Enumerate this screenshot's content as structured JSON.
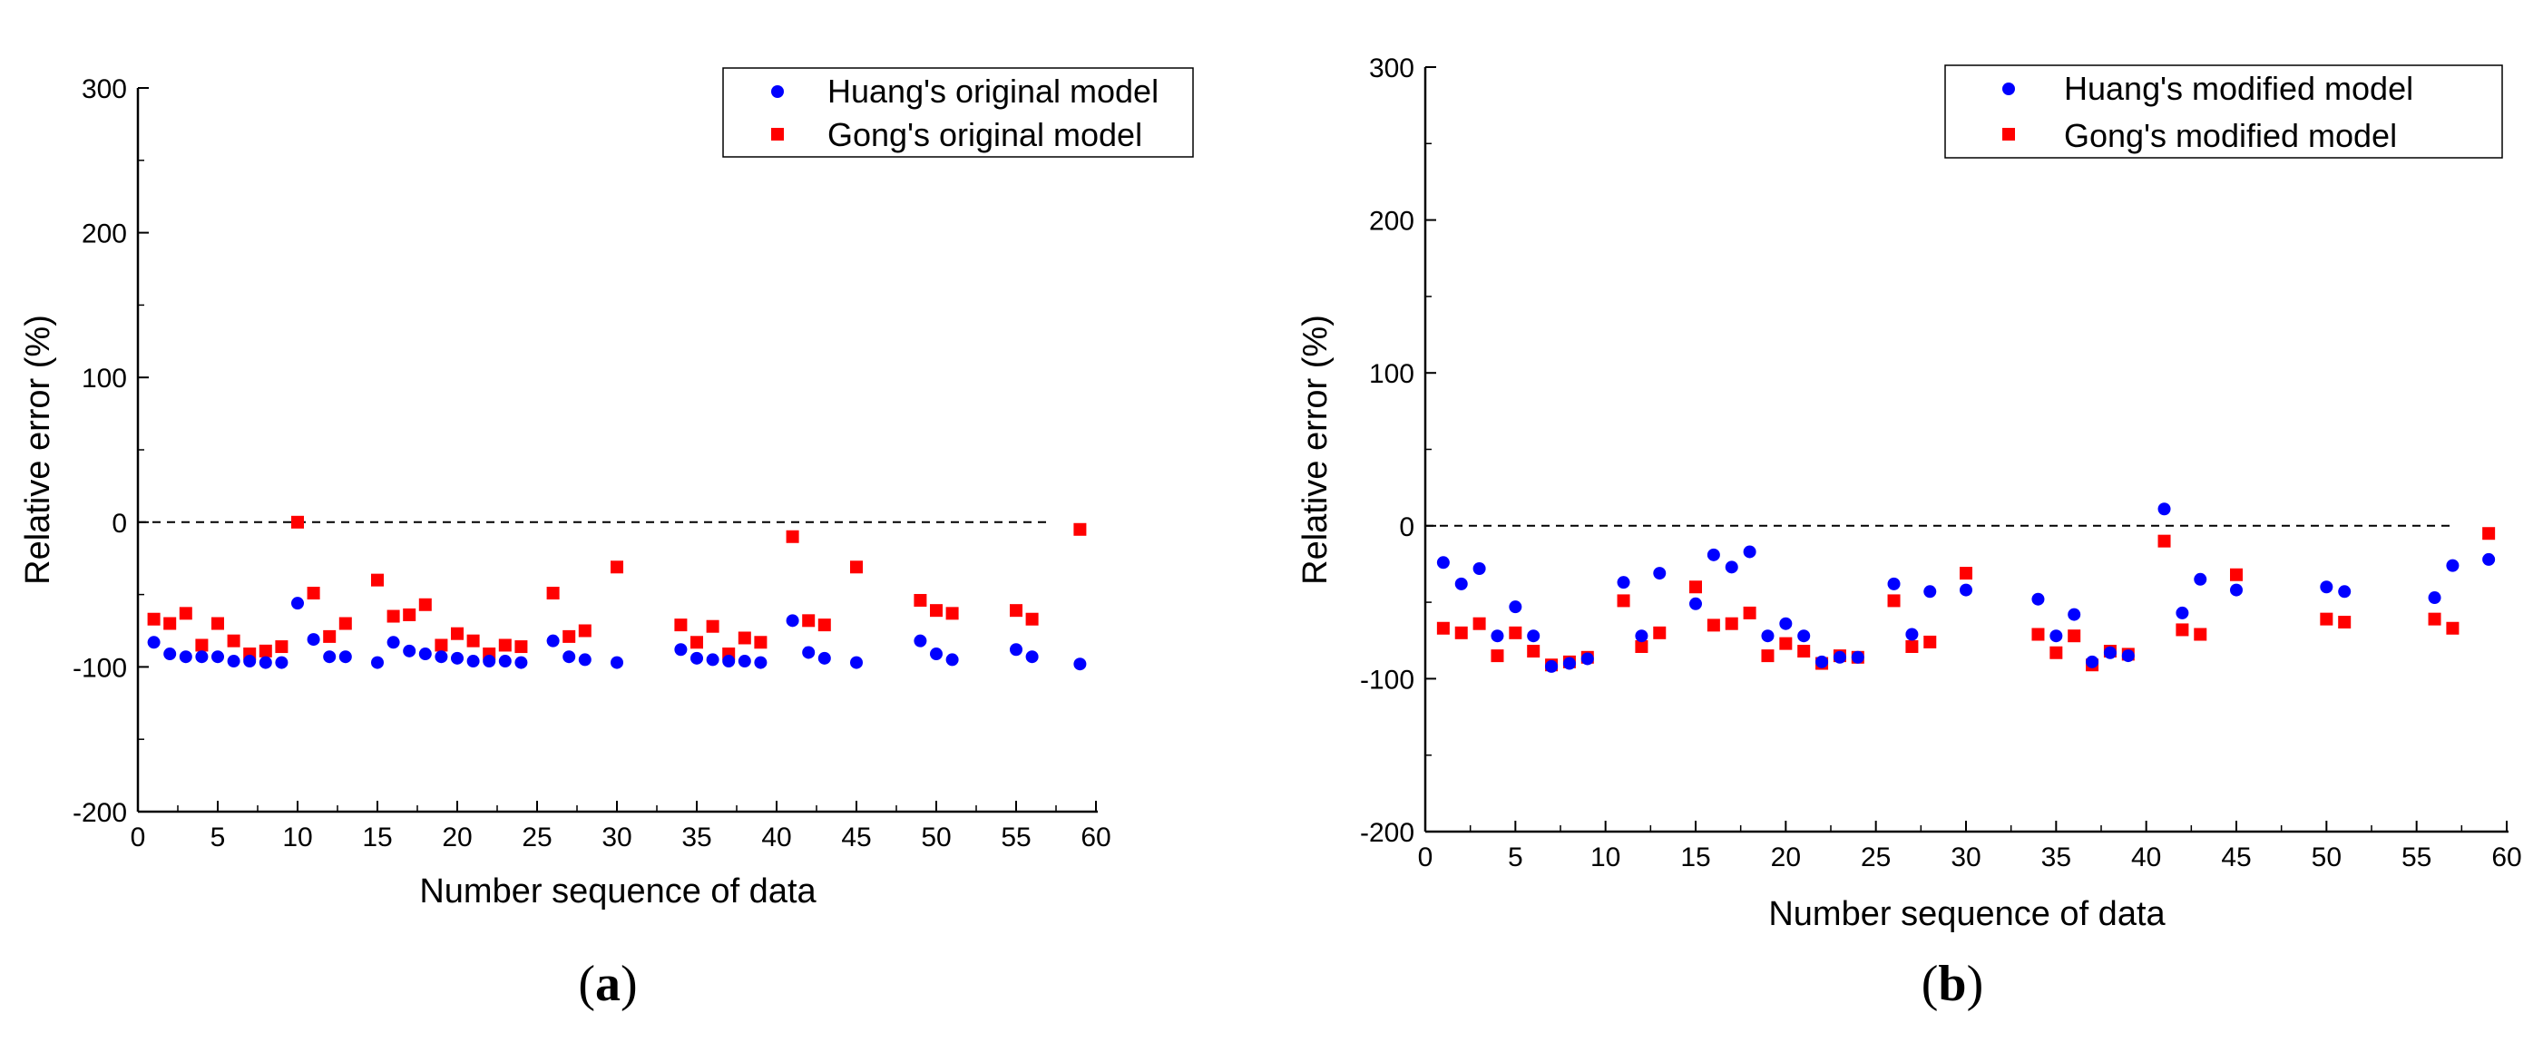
{
  "chart_data": [
    {
      "id": "a",
      "type": "scatter",
      "panel_label": "a",
      "xlabel": "Number sequence of data",
      "ylabel": "Relative error (%)",
      "xlim": [
        0,
        60
      ],
      "ylim": [
        -200,
        300
      ],
      "xticks": [
        0,
        5,
        10,
        15,
        20,
        25,
        30,
        35,
        40,
        45,
        50,
        55,
        60
      ],
      "yticks": [
        -200,
        -100,
        0,
        100,
        200,
        300
      ],
      "reference_line": {
        "y": 0,
        "style": "dashed",
        "x_end": 57
      },
      "legend": {
        "position": "top-right"
      },
      "series": [
        {
          "name": "Huang's original model",
          "marker": "circle",
          "color": "#0000ff",
          "points": [
            [
              1,
              -83
            ],
            [
              2,
              -91
            ],
            [
              3,
              -93
            ],
            [
              4,
              -93
            ],
            [
              5,
              -93
            ],
            [
              6,
              -96
            ],
            [
              7,
              -96
            ],
            [
              8,
              -97
            ],
            [
              9,
              -97
            ],
            [
              10,
              -56
            ],
            [
              11,
              -81
            ],
            [
              12,
              -93
            ],
            [
              13,
              -93
            ],
            [
              15,
              -97
            ],
            [
              16,
              -83
            ],
            [
              17,
              -89
            ],
            [
              18,
              -91
            ],
            [
              19,
              -93
            ],
            [
              20,
              -94
            ],
            [
              21,
              -96
            ],
            [
              22,
              -96
            ],
            [
              23,
              -96
            ],
            [
              24,
              -97
            ],
            [
              26,
              -82
            ],
            [
              27,
              -93
            ],
            [
              28,
              -95
            ],
            [
              30,
              -97
            ],
            [
              34,
              -88
            ],
            [
              35,
              -94
            ],
            [
              36,
              -95
            ],
            [
              37,
              -96
            ],
            [
              38,
              -96
            ],
            [
              39,
              -97
            ],
            [
              41,
              -68
            ],
            [
              42,
              -90
            ],
            [
              43,
              -94
            ],
            [
              45,
              -97
            ],
            [
              49,
              -82
            ],
            [
              50,
              -91
            ],
            [
              51,
              -95
            ],
            [
              55,
              -88
            ],
            [
              56,
              -93
            ],
            [
              59,
              -98
            ]
          ]
        },
        {
          "name": "Gong's original model",
          "marker": "square",
          "color": "#ff0000",
          "points": [
            [
              1,
              -67
            ],
            [
              2,
              -70
            ],
            [
              3,
              -63
            ],
            [
              4,
              -85
            ],
            [
              5,
              -70
            ],
            [
              6,
              -82
            ],
            [
              7,
              -91
            ],
            [
              8,
              -89
            ],
            [
              9,
              -86
            ],
            [
              10,
              0
            ],
            [
              11,
              -49
            ],
            [
              12,
              -79
            ],
            [
              13,
              -70
            ],
            [
              15,
              -40
            ],
            [
              16,
              -65
            ],
            [
              17,
              -64
            ],
            [
              18,
              -57
            ],
            [
              19,
              -85
            ],
            [
              20,
              -77
            ],
            [
              21,
              -82
            ],
            [
              22,
              -91
            ],
            [
              23,
              -85
            ],
            [
              24,
              -86
            ],
            [
              26,
              -49
            ],
            [
              27,
              -79
            ],
            [
              28,
              -75
            ],
            [
              30,
              -31
            ],
            [
              34,
              -71
            ],
            [
              35,
              -83
            ],
            [
              36,
              -72
            ],
            [
              37,
              -91
            ],
            [
              38,
              -80
            ],
            [
              39,
              -83
            ],
            [
              41,
              -10
            ],
            [
              42,
              -68
            ],
            [
              43,
              -71
            ],
            [
              45,
              -31
            ],
            [
              49,
              -54
            ],
            [
              50,
              -61
            ],
            [
              51,
              -63
            ],
            [
              55,
              -61
            ],
            [
              56,
              -67
            ],
            [
              59,
              -5
            ]
          ]
        }
      ]
    },
    {
      "id": "b",
      "type": "scatter",
      "panel_label": "b",
      "xlabel": "Number sequence of data",
      "ylabel": "Relative error (%)",
      "xlim": [
        0,
        60
      ],
      "ylim": [
        -200,
        300
      ],
      "xticks": [
        0,
        5,
        10,
        15,
        20,
        25,
        30,
        35,
        40,
        45,
        50,
        55,
        60
      ],
      "yticks": [
        -200,
        -100,
        0,
        100,
        200,
        300
      ],
      "reference_line": {
        "y": 0,
        "style": "dashed",
        "x_end": 57
      },
      "legend": {
        "position": "top-right"
      },
      "series": [
        {
          "name": "Huang's modified model",
          "marker": "circle",
          "color": "#0000ff",
          "points": [
            [
              1,
              -24
            ],
            [
              2,
              -38
            ],
            [
              3,
              -28
            ],
            [
              4,
              -72
            ],
            [
              5,
              -53
            ],
            [
              6,
              -72
            ],
            [
              7,
              -92
            ],
            [
              8,
              -90
            ],
            [
              9,
              -87
            ],
            [
              11,
              -37
            ],
            [
              12,
              -72
            ],
            [
              13,
              -31
            ],
            [
              15,
              -51
            ],
            [
              16,
              -19
            ],
            [
              17,
              -27
            ],
            [
              18,
              -17
            ],
            [
              19,
              -72
            ],
            [
              20,
              -64
            ],
            [
              21,
              -72
            ],
            [
              22,
              -89
            ],
            [
              23,
              -86
            ],
            [
              24,
              -86
            ],
            [
              26,
              -38
            ],
            [
              27,
              -71
            ],
            [
              28,
              -43
            ],
            [
              30,
              -42
            ],
            [
              34,
              -48
            ],
            [
              35,
              -72
            ],
            [
              36,
              -58
            ],
            [
              37,
              -89
            ],
            [
              38,
              -83
            ],
            [
              39,
              -85
            ],
            [
              41,
              11
            ],
            [
              42,
              -57
            ],
            [
              43,
              -35
            ],
            [
              45,
              -42
            ],
            [
              50,
              -40
            ],
            [
              51,
              -43
            ],
            [
              56,
              -47
            ],
            [
              57,
              -26
            ],
            [
              59,
              -22
            ]
          ]
        },
        {
          "name": "Gong's modified model",
          "marker": "square",
          "color": "#ff0000",
          "points": [
            [
              1,
              -67
            ],
            [
              2,
              -70
            ],
            [
              3,
              -64
            ],
            [
              4,
              -85
            ],
            [
              5,
              -70
            ],
            [
              6,
              -82
            ],
            [
              7,
              -91
            ],
            [
              8,
              -89
            ],
            [
              9,
              -86
            ],
            [
              11,
              -49
            ],
            [
              12,
              -79
            ],
            [
              13,
              -70
            ],
            [
              15,
              -40
            ],
            [
              16,
              -65
            ],
            [
              17,
              -64
            ],
            [
              18,
              -57
            ],
            [
              19,
              -85
            ],
            [
              20,
              -77
            ],
            [
              21,
              -82
            ],
            [
              22,
              -90
            ],
            [
              23,
              -85
            ],
            [
              24,
              -86
            ],
            [
              26,
              -49
            ],
            [
              27,
              -79
            ],
            [
              28,
              -76
            ],
            [
              30,
              -31
            ],
            [
              34,
              -71
            ],
            [
              35,
              -83
            ],
            [
              36,
              -72
            ],
            [
              37,
              -91
            ],
            [
              38,
              -82
            ],
            [
              39,
              -84
            ],
            [
              41,
              -10
            ],
            [
              42,
              -68
            ],
            [
              43,
              -71
            ],
            [
              45,
              -32
            ],
            [
              50,
              -61
            ],
            [
              51,
              -63
            ],
            [
              56,
              -61
            ],
            [
              57,
              -67
            ],
            [
              59,
              -5
            ]
          ]
        }
      ]
    }
  ]
}
